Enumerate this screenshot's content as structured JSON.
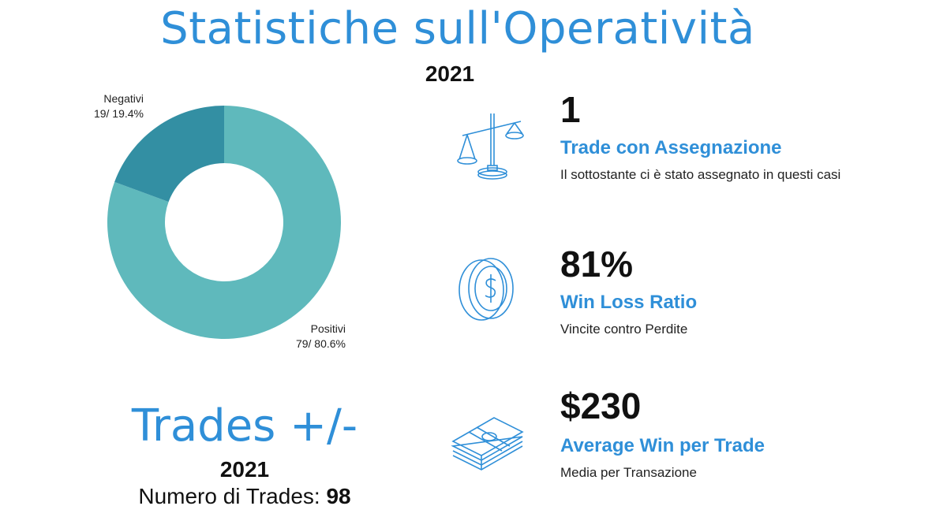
{
  "header": {
    "title": "Statistiche sull'Operatività",
    "year": "2021"
  },
  "chart_data": {
    "type": "pie",
    "variant": "donut",
    "slices": [
      {
        "label": "Positivi",
        "value": 79,
        "percent": "80.6%",
        "color": "#5fb9bc"
      },
      {
        "label": "Negativi",
        "value": 19,
        "percent": "19.4%",
        "color": "#338fa3"
      }
    ],
    "labels_text": {
      "negativi_count": "19/  19.4%",
      "positivi_count": "79/  80.6%"
    }
  },
  "trades": {
    "title": "Trades +/-",
    "year": "2021",
    "count_label": "Numero di Trades: ",
    "count_value": "98"
  },
  "stats": [
    {
      "value": "1",
      "title": "Trade con Assegnazione",
      "description": "Il sottostante ci è stato assegnato in questi casi",
      "icon": "scale-icon"
    },
    {
      "value": "81%",
      "title": "Win Loss Ratio",
      "description": "Vincite contro Perdite",
      "icon": "coin-icon"
    },
    {
      "value": "$230",
      "title": "Average Win per Trade",
      "description": "Media per Transazione",
      "icon": "money-stack-icon"
    }
  ],
  "colors": {
    "accent": "#2f8fd8",
    "positive": "#5fb9bc",
    "negative": "#338fa3"
  }
}
